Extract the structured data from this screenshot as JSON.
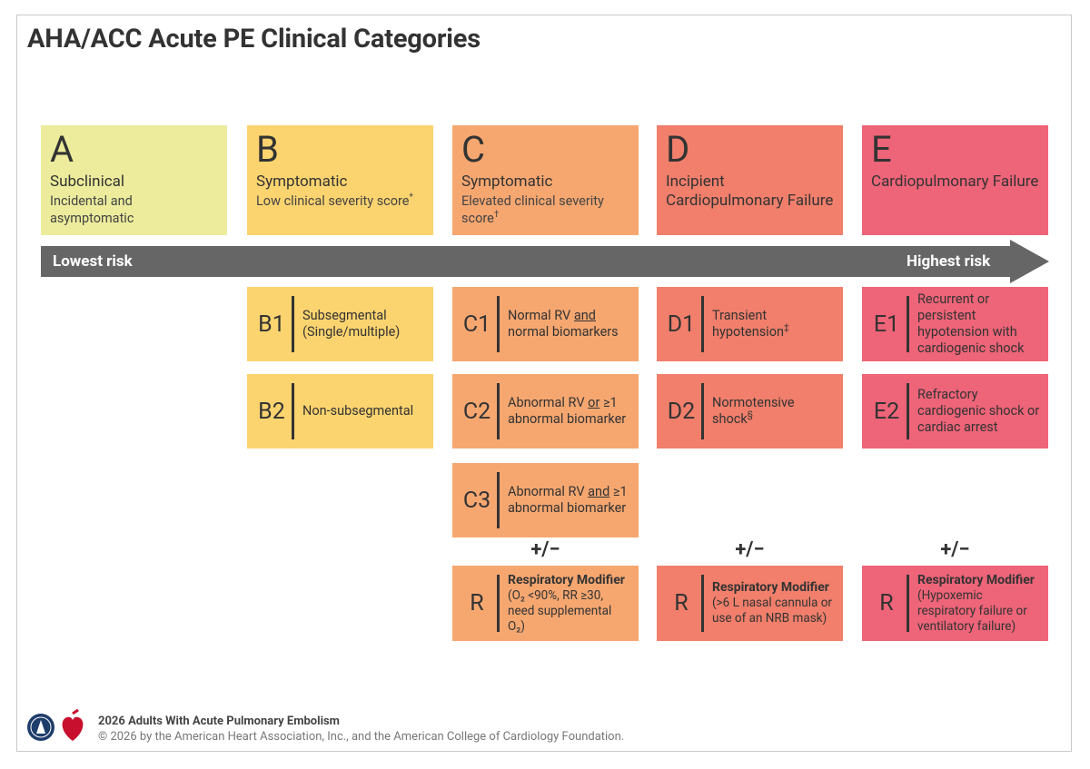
{
  "header": {
    "title": "AHA/ACC Acute PE Clinical Categories"
  },
  "risk_arrow": {
    "low": "Lowest risk",
    "high": "Highest risk"
  },
  "categories": [
    {
      "letter": "A",
      "name": "Subclinical",
      "description": "Incidental and asymptomatic",
      "color": "#ecec9c",
      "subcategories": []
    },
    {
      "letter": "B",
      "name": "Symptomatic",
      "description": "Low clinical severity score",
      "description_sup": "*",
      "color": "#fcd46f",
      "subcategories": [
        {
          "code": "B1",
          "text": "Subsegmental (Single/multiple)"
        },
        {
          "code": "B2",
          "text": "Non-subsegmental"
        }
      ]
    },
    {
      "letter": "C",
      "name": "Symptomatic",
      "description": "Elevated clinical severity score",
      "description_sup": "†",
      "color": "#f6a770",
      "subcategories": [
        {
          "code": "C1",
          "before": "Normal RV",
          "emphasis": "and",
          "after": "normal biomarkers"
        },
        {
          "code": "C2",
          "before": "Abnormal RV",
          "emphasis": "or",
          "after": "≥1 abnormal biomarker"
        },
        {
          "code": "C3",
          "before": "Abnormal RV",
          "emphasis": "and",
          "after": "≥1 abnormal biomarker"
        }
      ],
      "modifier": {
        "sign": "+/−",
        "code": "R",
        "title": "Respiratory Modifier",
        "detail": "(O₂ <90%, RR ≥30, need supplemental O₂)"
      }
    },
    {
      "letter": "D",
      "name": "Incipient Cardiopulmonary Failure",
      "color": "#f17f6b",
      "subcategories": [
        {
          "code": "D1",
          "text": "Transient hypotension",
          "sup": "‡"
        },
        {
          "code": "D2",
          "text": "Normotensive shock",
          "sup": "§"
        }
      ],
      "modifier": {
        "sign": "+/−",
        "code": "R",
        "title": "Respiratory Modifier",
        "detail": "(>6 L nasal cannula or use of an NRB mask)"
      }
    },
    {
      "letter": "E",
      "name": "Cardiopulmonary Failure",
      "color": "#ee6478",
      "subcategories": [
        {
          "code": "E1",
          "text": "Recurrent or persistent hypotension with cardiogenic shock"
        },
        {
          "code": "E2",
          "text": "Refractory cardiogenic shock or cardiac arrest"
        }
      ],
      "modifier": {
        "sign": "+/−",
        "code": "R",
        "title": "Respiratory Modifier",
        "detail": "(Hypoxemic respiratory failure or ventilatory failure)"
      }
    }
  ],
  "footer": {
    "title": "2026 Adults With Acute Pulmonary Embolism",
    "copyright": "© 2026 by the American Heart Association, Inc., and the American College of Cardiology Foundation."
  }
}
